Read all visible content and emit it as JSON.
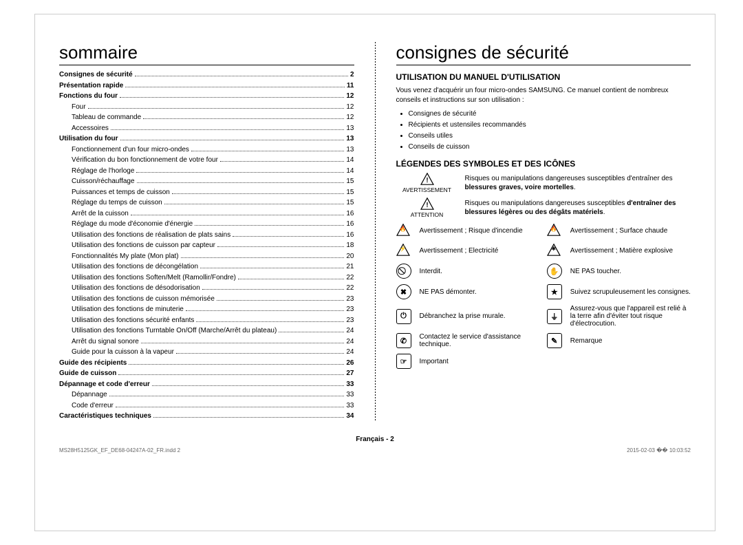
{
  "left": {
    "title": "sommaire",
    "toc": [
      {
        "label": "Consignes de sécurité",
        "page": "2",
        "bold": true,
        "indent": 0
      },
      {
        "label": "Présentation rapide",
        "page": "11",
        "bold": true,
        "indent": 0
      },
      {
        "label": "Fonctions du four",
        "page": "12",
        "bold": true,
        "indent": 0
      },
      {
        "label": "Four",
        "page": "12",
        "bold": false,
        "indent": 1
      },
      {
        "label": "Tableau de commande",
        "page": "12",
        "bold": false,
        "indent": 1
      },
      {
        "label": "Accessoires",
        "page": "13",
        "bold": false,
        "indent": 1
      },
      {
        "label": "Utilisation du four",
        "page": "13",
        "bold": true,
        "indent": 0
      },
      {
        "label": "Fonctionnement d'un four micro-ondes",
        "page": "13",
        "bold": false,
        "indent": 1
      },
      {
        "label": "Vérification du bon fonctionnement de votre four",
        "page": "14",
        "bold": false,
        "indent": 1
      },
      {
        "label": "Réglage de l'horloge",
        "page": "14",
        "bold": false,
        "indent": 1
      },
      {
        "label": "Cuisson/réchauffage",
        "page": "15",
        "bold": false,
        "indent": 1
      },
      {
        "label": "Puissances et temps de cuisson",
        "page": "15",
        "bold": false,
        "indent": 1
      },
      {
        "label": "Réglage du temps de cuisson",
        "page": "15",
        "bold": false,
        "indent": 1
      },
      {
        "label": "Arrêt de la cuisson",
        "page": "16",
        "bold": false,
        "indent": 1
      },
      {
        "label": "Réglage du mode d'économie d'énergie",
        "page": "16",
        "bold": false,
        "indent": 1
      },
      {
        "label": "Utilisation des fonctions de réalisation de plats sains",
        "page": "16",
        "bold": false,
        "indent": 1
      },
      {
        "label": "Utilisation des fonctions de cuisson par capteur",
        "page": "18",
        "bold": false,
        "indent": 1
      },
      {
        "label": "Fonctionnalités My plate (Mon plat)",
        "page": "20",
        "bold": false,
        "indent": 1
      },
      {
        "label": "Utilisation des fonctions de décongélation",
        "page": "21",
        "bold": false,
        "indent": 1
      },
      {
        "label": "Utilisation des fonctions Soften/Melt (Ramollir/Fondre)",
        "page": "22",
        "bold": false,
        "indent": 1
      },
      {
        "label": "Utilisation des fonctions de désodorisation",
        "page": "22",
        "bold": false,
        "indent": 1
      },
      {
        "label": "Utilisation des fonctions de cuisson mémorisée",
        "page": "23",
        "bold": false,
        "indent": 1
      },
      {
        "label": "Utilisation des fonctions de minuterie",
        "page": "23",
        "bold": false,
        "indent": 1
      },
      {
        "label": "Utilisation des fonctions sécurité enfants",
        "page": "23",
        "bold": false,
        "indent": 1
      },
      {
        "label": "Utilisation des fonctions Turntable On/Off (Marche/Arrêt du plateau)",
        "page": "24",
        "bold": false,
        "indent": 1
      },
      {
        "label": "Arrêt du signal sonore",
        "page": "24",
        "bold": false,
        "indent": 1
      },
      {
        "label": "Guide pour la cuisson à la vapeur",
        "page": "24",
        "bold": false,
        "indent": 1
      },
      {
        "label": "Guide des récipients",
        "page": "26",
        "bold": true,
        "indent": 0
      },
      {
        "label": "Guide de cuisson",
        "page": "27",
        "bold": true,
        "indent": 0
      },
      {
        "label": "Dépannage et code d'erreur",
        "page": "33",
        "bold": true,
        "indent": 0
      },
      {
        "label": "Dépannage",
        "page": "33",
        "bold": false,
        "indent": 1
      },
      {
        "label": "Code d'erreur",
        "page": "33",
        "bold": false,
        "indent": 1
      },
      {
        "label": "Caractéristiques techniques",
        "page": "34",
        "bold": true,
        "indent": 0
      }
    ]
  },
  "right": {
    "title": "consignes de sécurité",
    "h_manual": "UTILISATION DU MANUEL D'UTILISATION",
    "intro": "Vous venez d'acquérir un four micro-ondes SAMSUNG. Ce manuel contient de nombreux conseils et instructions sur son utilisation :",
    "bullets": [
      "Consignes de sécurité",
      "Récipients et ustensiles recommandés",
      "Conseils utiles",
      "Conseils de cuisson"
    ],
    "h_legend": "LÉGENDES DES SYMBOLES ET DES ICÔNES",
    "warn1_label": "AVERTISSEMENT",
    "warn1_text_a": "Risques ou manipulations dangereuses susceptibles d'entraîner des ",
    "warn1_text_b": "blessures graves, voire mortelles",
    "warn1_text_c": ".",
    "warn2_label": "ATTENTION",
    "warn2_text_a": "Risques ou manipulations dangereuses susceptibles ",
    "warn2_text_b": "d'entraîner des blessures légères ou des dégâts matériels",
    "warn2_text_c": ".",
    "icons": [
      {
        "glyph": "🔥",
        "shape": "tri",
        "text": "Avertissement ; Risque d'incendie"
      },
      {
        "glyph": "🔥",
        "shape": "tri",
        "text": "Avertissement ; Surface chaude"
      },
      {
        "glyph": "⚡",
        "shape": "tri",
        "text": "Avertissement ; Electricité"
      },
      {
        "glyph": "✱",
        "shape": "tri",
        "text": "Avertissement ; Matière explosive"
      },
      {
        "glyph": "⃠",
        "shape": "circle",
        "text": "Interdit."
      },
      {
        "glyph": "✋",
        "shape": "circle",
        "text": "NE PAS toucher."
      },
      {
        "glyph": "✖",
        "shape": "circle",
        "text": "NE PAS démonter."
      },
      {
        "glyph": "★",
        "shape": "square",
        "text": "Suivez scrupuleusement les consignes."
      },
      {
        "glyph": "⏻",
        "shape": "square",
        "text": "Débranchez la prise murale."
      },
      {
        "glyph": "⏚",
        "shape": "square",
        "text": "Assurez-vous que l'appareil est relié à la terre afin d'éviter tout risque d'électrocution."
      },
      {
        "glyph": "✆",
        "shape": "square",
        "text": "Contactez le service d'assistance technique."
      },
      {
        "glyph": "✎",
        "shape": "square",
        "text": "Remarque"
      },
      {
        "glyph": "☞",
        "shape": "square",
        "text": "Important"
      },
      {
        "glyph": "",
        "shape": "none",
        "text": ""
      }
    ]
  },
  "footer": {
    "lang": "Français - 2",
    "file": "MS28H5125GK_EF_DE68-04247A-02_FR.indd   2",
    "date": "2015-02-03   �� 10:03:52"
  }
}
